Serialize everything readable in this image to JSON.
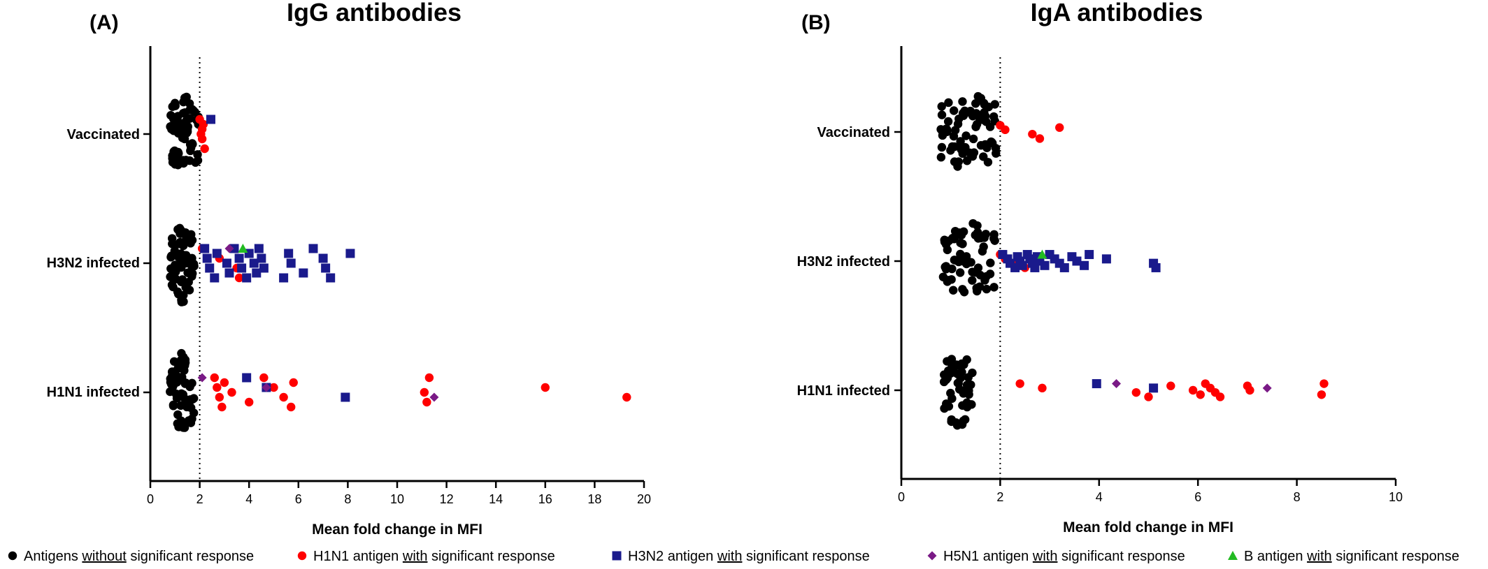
{
  "colors": {
    "none": "#000000",
    "h1n1": "#ff0000",
    "h3n2": "#1a1a8c",
    "h5n1": "#7a1a86",
    "b": "#22bb22"
  },
  "legend": [
    {
      "key": "none",
      "marker": "circle",
      "pre": "Antigens ",
      "u": "without",
      "post": " significant response"
    },
    {
      "key": "h1n1",
      "marker": "circle",
      "pre": "H1N1 antigen ",
      "u": "with",
      "post": " significant response"
    },
    {
      "key": "h3n2",
      "marker": "square",
      "pre": "H3N2 antigen ",
      "u": "with",
      "post": " significant response"
    },
    {
      "key": "h5n1",
      "marker": "diamond",
      "pre": "H5N1 antigen ",
      "u": "with",
      "post": " significant response"
    },
    {
      "key": "b",
      "marker": "triangle",
      "pre": "B antigen ",
      "u": "with",
      "post": " significant response"
    }
  ],
  "chart_data": [
    {
      "type": "scatter",
      "panel": "(A)",
      "title": "IgG antibodies",
      "xlabel": "Mean fold change in MFI",
      "ylabel": "",
      "xlim": [
        0,
        20
      ],
      "xticks": [
        0,
        2,
        4,
        6,
        8,
        10,
        12,
        14,
        16,
        18,
        20
      ],
      "threshold": 2,
      "categories": [
        "Vaccinated",
        "H3N2 infected",
        "H1N1 infected"
      ],
      "groups": [
        {
          "category": "Vaccinated",
          "none_x_range": [
            0.8,
            2.0
          ],
          "none_count": 66,
          "h1n1": [
            2.0,
            2.1,
            2.1,
            2.2,
            2.15,
            2.05
          ],
          "h3n2": [
            2.45
          ],
          "h5n1": [],
          "b": []
        },
        {
          "category": "H3N2 infected",
          "none_x_range": [
            0.8,
            1.8
          ],
          "none_count": 60,
          "h1n1": [
            2.1,
            2.8,
            3.5,
            3.6
          ],
          "h3n2": [
            2.2,
            2.3,
            2.4,
            2.6,
            2.7,
            3.1,
            3.2,
            3.4,
            3.6,
            3.7,
            3.9,
            4.0,
            4.2,
            4.3,
            4.4,
            4.5,
            4.6,
            5.4,
            5.6,
            5.7,
            6.2,
            6.6,
            7.0,
            7.1,
            7.3,
            8.1
          ],
          "h5n1": [
            3.2
          ],
          "b": [
            3.75
          ]
        },
        {
          "category": "H1N1 infected",
          "none_x_range": [
            0.8,
            1.8
          ],
          "none_count": 64,
          "h1n1": [
            2.6,
            2.7,
            2.8,
            2.9,
            3.0,
            3.3,
            4.0,
            4.6,
            5.0,
            5.4,
            5.7,
            5.8,
            11.1,
            11.2,
            11.3,
            16.0,
            19.3
          ],
          "h3n2": [
            3.9,
            4.7,
            7.9
          ],
          "h5n1": [
            2.1,
            4.7,
            11.5
          ],
          "b": []
        }
      ]
    },
    {
      "type": "scatter",
      "panel": "(B)",
      "title": "IgA antibodies",
      "xlabel": "Mean fold change in MFI",
      "ylabel": "",
      "xlim": [
        0,
        10
      ],
      "xticks": [
        0,
        2,
        4,
        6,
        8,
        10
      ],
      "threshold": 2,
      "categories": [
        "Vaccinated",
        "H3N2 infected",
        "H1N1 infected"
      ],
      "groups": [
        {
          "category": "Vaccinated",
          "none_x_range": [
            0.8,
            1.95
          ],
          "none_count": 70,
          "h1n1": [
            2.0,
            2.1,
            2.65,
            2.8,
            3.2
          ],
          "h3n2": [],
          "h5n1": [],
          "b": []
        },
        {
          "category": "H3N2 infected",
          "none_x_range": [
            0.8,
            1.9
          ],
          "none_count": 62,
          "h1n1": [
            2.0,
            2.1,
            2.25,
            2.5
          ],
          "h3n2": [
            2.05,
            2.15,
            2.2,
            2.3,
            2.35,
            2.4,
            2.45,
            2.55,
            2.6,
            2.65,
            2.7,
            2.75,
            2.8,
            2.9,
            3.0,
            3.1,
            3.2,
            3.3,
            3.45,
            3.55,
            3.7,
            3.8,
            4.15,
            5.1,
            5.15
          ],
          "h5n1": [],
          "b": [
            2.85
          ]
        },
        {
          "category": "H1N1 infected",
          "none_x_range": [
            0.85,
            1.45
          ],
          "none_count": 50,
          "h1n1": [
            2.4,
            2.85,
            4.75,
            5.0,
            5.45,
            5.9,
            6.05,
            6.15,
            6.25,
            6.35,
            6.45,
            7.0,
            7.05,
            8.5,
            8.55
          ],
          "h3n2": [
            3.95,
            5.1
          ],
          "h5n1": [
            4.35,
            7.4
          ],
          "b": []
        }
      ]
    }
  ]
}
